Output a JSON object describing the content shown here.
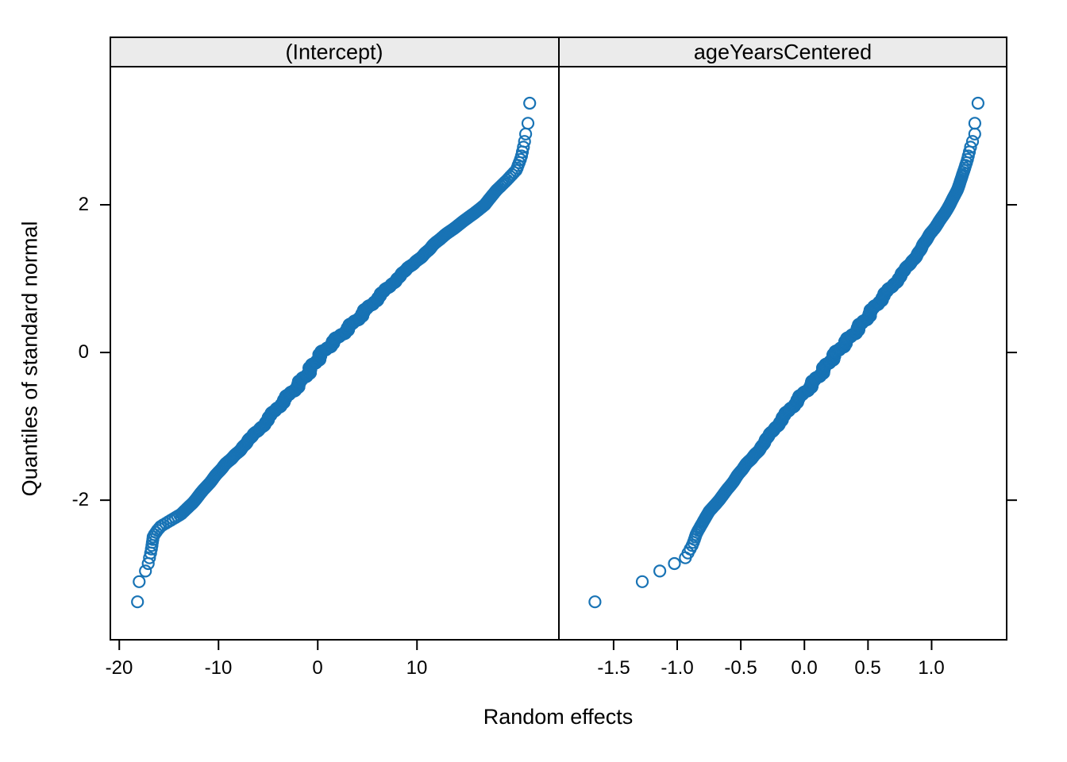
{
  "chart_data": {
    "type": "scatter",
    "subtype": "qq-plot",
    "title": "",
    "xlabel": "Random effects",
    "ylabel": "Quantiles of standard normal",
    "grid": false,
    "legend": "none",
    "ylim": [
      -3.89,
      3.87
    ],
    "yticks": {
      "values": [
        2,
        0,
        -2
      ],
      "labels": [
        "2",
        "0",
        "-2"
      ]
    },
    "n_points_per_panel": 1700,
    "point_style": {
      "shape": "open-circle",
      "color": "#1873B5",
      "radius_px": 7,
      "stroke_px": 2.2
    },
    "strip_bg": "#EBEBEB",
    "border_color": "#000000",
    "panels": [
      {
        "label": "(Intercept)",
        "xlim": [
          -20.9,
          24.3
        ],
        "xticks": {
          "values": [
            -20,
            -10,
            0,
            10
          ],
          "labels": [
            "-20",
            "-10",
            "0",
            "10"
          ]
        },
        "qq_curve": [
          [
            -3.44,
            -18.2
          ],
          [
            -3.1,
            -18.0
          ],
          [
            -2.92,
            -17.2
          ],
          [
            -2.68,
            -16.8
          ],
          [
            -2.49,
            -16.6
          ],
          [
            -2.41,
            -16.2
          ],
          [
            -2.35,
            -15.8
          ],
          [
            -2.27,
            -14.8
          ],
          [
            -2.19,
            -13.8
          ],
          [
            -2.03,
            -12.6
          ],
          [
            -1.9,
            -11.8
          ],
          [
            -1.75,
            -10.8
          ],
          [
            -1.5,
            -9.2
          ],
          [
            -1.25,
            -7.4
          ],
          [
            -1.0,
            -5.6
          ],
          [
            -0.75,
            -4.0
          ],
          [
            -0.5,
            -2.4
          ],
          [
            -0.25,
            -0.9
          ],
          [
            0,
            0.55
          ],
          [
            0.25,
            2.4
          ],
          [
            0.5,
            4.3
          ],
          [
            0.75,
            6.2
          ],
          [
            1.0,
            8.0
          ],
          [
            1.25,
            10.0
          ],
          [
            1.5,
            12.0
          ],
          [
            1.75,
            14.4
          ],
          [
            2.0,
            16.8
          ],
          [
            2.2,
            18.0
          ],
          [
            2.33,
            19.0
          ],
          [
            2.47,
            20.0
          ],
          [
            2.64,
            20.5
          ],
          [
            2.82,
            20.8
          ],
          [
            3.0,
            21.0
          ],
          [
            3.11,
            21.2
          ],
          [
            3.43,
            21.4
          ]
        ]
      },
      {
        "label": "ageYearsCentered",
        "xlim": [
          -1.93,
          1.59
        ],
        "xticks": {
          "values": [
            -1.5,
            -1.0,
            -0.5,
            0.0,
            0.5,
            1.0
          ],
          "labels": [
            "-1.5",
            "-1.0",
            "-0.5",
            "0.0",
            "0.5",
            "1.0"
          ]
        },
        "qq_curve": [
          [
            -3.43,
            -1.72
          ],
          [
            -3.1,
            -1.27
          ],
          [
            -2.93,
            -1.11
          ],
          [
            -2.79,
            -0.94
          ],
          [
            -2.6,
            -0.88
          ],
          [
            -2.45,
            -0.85
          ],
          [
            -2.3,
            -0.8
          ],
          [
            -2.15,
            -0.75
          ],
          [
            -2.0,
            -0.675
          ],
          [
            -1.75,
            -0.56
          ],
          [
            -1.5,
            -0.45
          ],
          [
            -1.25,
            -0.33
          ],
          [
            -1.0,
            -0.22
          ],
          [
            -0.75,
            -0.1
          ],
          [
            -0.5,
            0.02
          ],
          [
            -0.25,
            0.14
          ],
          [
            0,
            0.26
          ],
          [
            0.25,
            0.38
          ],
          [
            0.5,
            0.5
          ],
          [
            0.75,
            0.62
          ],
          [
            1.0,
            0.74
          ],
          [
            1.25,
            0.85
          ],
          [
            1.5,
            0.95
          ],
          [
            1.75,
            1.05
          ],
          [
            2.0,
            1.14
          ],
          [
            2.2,
            1.2
          ],
          [
            2.4,
            1.24
          ],
          [
            2.6,
            1.28
          ],
          [
            2.8,
            1.31
          ],
          [
            2.94,
            1.34
          ],
          [
            3.1,
            1.34
          ],
          [
            3.43,
            1.37
          ]
        ]
      }
    ]
  }
}
